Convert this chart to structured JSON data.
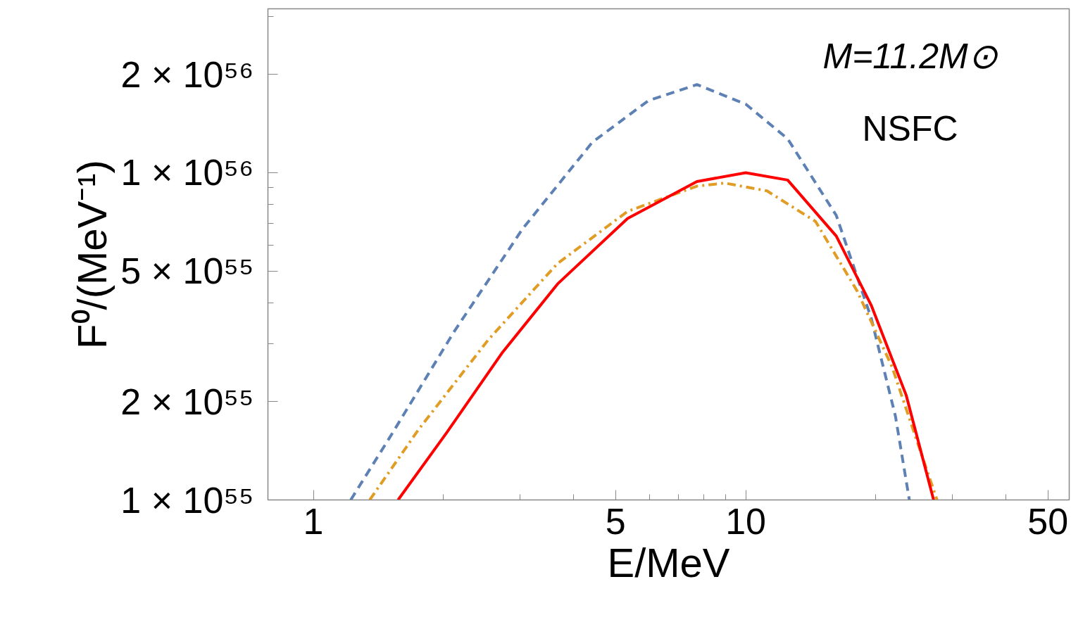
{
  "chart_data": {
    "type": "line",
    "xlabel": "E/MeV",
    "ylabel": "F⁰/(MeV⁻¹)",
    "annotations": [
      "M=11.2M⊙",
      "NSFC"
    ],
    "log": "xy",
    "grid": false,
    "xlim": [
      0.785,
      56
    ],
    "ylim": [
      1e+55,
      3.17e+56
    ],
    "xticks": [
      1,
      {
        "value": 2,
        "label": null
      },
      {
        "value": 3,
        "label": null
      },
      {
        "value": 4,
        "label": null
      },
      5,
      {
        "value": 6,
        "label": null
      },
      {
        "value": 7,
        "label": null
      },
      {
        "value": 8,
        "label": null
      },
      {
        "value": 9,
        "label": null
      },
      10,
      {
        "value": 20,
        "label": null
      },
      {
        "value": 30,
        "label": null
      },
      {
        "value": 40,
        "label": null
      },
      50
    ],
    "yticks": [
      {
        "value": 1e+55,
        "label": "1 × 10⁵⁵"
      },
      {
        "value": 2e+55,
        "label": "2 × 10⁵⁵"
      },
      {
        "value": 3e+55,
        "label": null
      },
      {
        "value": 4e+55,
        "label": null
      },
      {
        "value": 5e+55,
        "label": "5 × 10⁵⁵"
      },
      {
        "value": 6e+55,
        "label": null
      },
      {
        "value": 7e+55,
        "label": null
      },
      {
        "value": 8e+55,
        "label": null
      },
      {
        "value": 9e+55,
        "label": null
      },
      {
        "value": 1e+56,
        "label": "1 × 10⁵⁶"
      },
      {
        "value": 2e+56,
        "label": "2 × 10⁵⁶"
      },
      {
        "value": 3e+56,
        "label": null
      }
    ],
    "series": [
      {
        "color": "#5e81b5",
        "line_style": "dashed",
        "x": [
          1.22,
          1.51,
          2.11,
          3.05,
          4.42,
          5.95,
          7.71,
          10,
          12.5,
          16.2,
          19.5,
          22.2,
          23.9
        ],
        "values": [
          1e+55,
          1.57e+55,
          3.25e+55,
          6.75e+55,
          1.24e+56,
          1.66e+56,
          1.86e+56,
          1.62e+56,
          1.27e+56,
          7.4e+55,
          3.6e+55,
          1.8e+55,
          1e+55
        ]
      },
      {
        "color": "#e19c24",
        "line_style": "dashdot",
        "x": [
          1.35,
          1.75,
          2.54,
          3.67,
          5.33,
          7.71,
          8.94,
          11.2,
          14.5,
          18.1,
          21.8,
          25.3,
          27.7
        ],
        "values": [
          1e+55,
          1.64e+55,
          3.09e+55,
          5.28e+55,
          7.62e+55,
          9.1e+55,
          9.3e+55,
          8.8e+55,
          7.1e+55,
          4.35e+55,
          2.55e+55,
          1.42e+55,
          1e+55
        ]
      },
      {
        "color": "#ff0000",
        "line_style": "solid",
        "x": [
          1.57,
          2.03,
          2.73,
          3.67,
          5.33,
          7.71,
          10,
          12.5,
          16.2,
          19.5,
          23.5,
          27.2
        ],
        "values": [
          1e+55,
          1.6e+55,
          2.81e+55,
          4.57e+55,
          7.25e+55,
          9.4e+55,
          1e+56,
          9.5e+55,
          6.4e+55,
          3.94e+55,
          2.09e+55,
          1e+55
        ]
      }
    ]
  }
}
